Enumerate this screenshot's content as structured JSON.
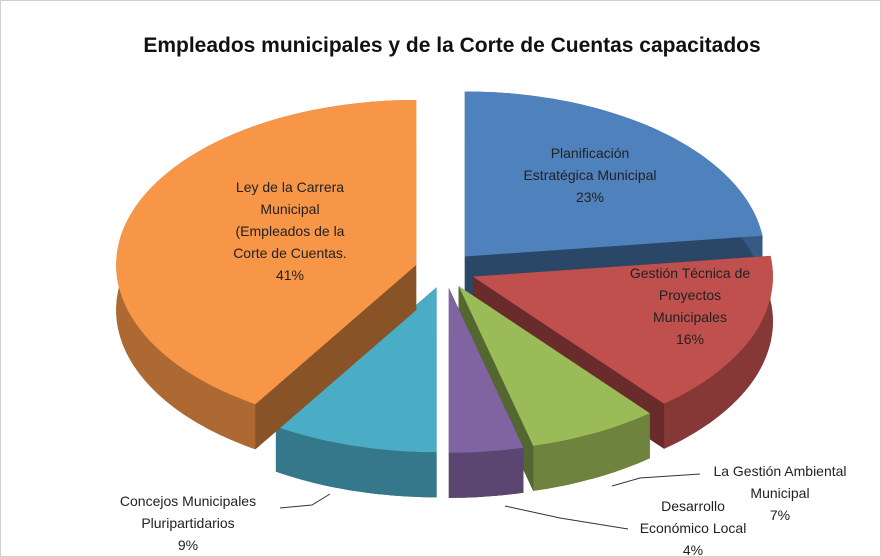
{
  "chart_data": {
    "type": "pie3d",
    "title": "Empleados municipales y de la Corte de Cuentas capacitados",
    "categories": [
      "Planificación\nEstratégica Municipal",
      "Gestión Técnica de\nProyectos\nMunicipales",
      "La Gestión Ambiental\nMunicipal",
      "Desarrollo\nEconómico Local",
      "Concejos Municipales\nPluripartidarios",
      "Ley de la Carrera\nMunicipal\n(Empleados de la\nCorte de Cuentas."
    ],
    "values": [
      23,
      16,
      7,
      4,
      9,
      41
    ],
    "value_labels": [
      "23%",
      "16%",
      "7%",
      "4%",
      "9%",
      "41%"
    ],
    "colors": [
      "#4f81bd",
      "#c0504d",
      "#9bbb59",
      "#8064a2",
      "#4bacc6",
      "#f79646"
    ],
    "exploded": true
  }
}
